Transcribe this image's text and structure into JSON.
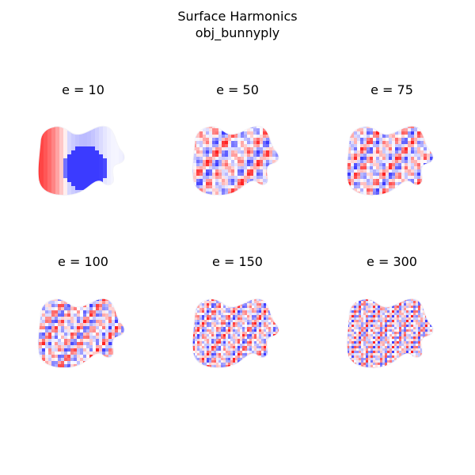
{
  "figure": {
    "title_line1": "Surface Harmonics",
    "title_line2": "obj_bunnyply"
  },
  "panels": [
    {
      "label": "e = 10",
      "eigen_index": 10
    },
    {
      "label": "e = 50",
      "eigen_index": 50
    },
    {
      "label": "e = 75",
      "eigen_index": 75
    },
    {
      "label": "e = 100",
      "eigen_index": 100
    },
    {
      "label": "e = 150",
      "eigen_index": 150
    },
    {
      "label": "e = 300",
      "eigen_index": 300
    }
  ],
  "colormap": {
    "low": "#3b3bff",
    "mid": "#ffffff",
    "high": "#ff2020"
  }
}
